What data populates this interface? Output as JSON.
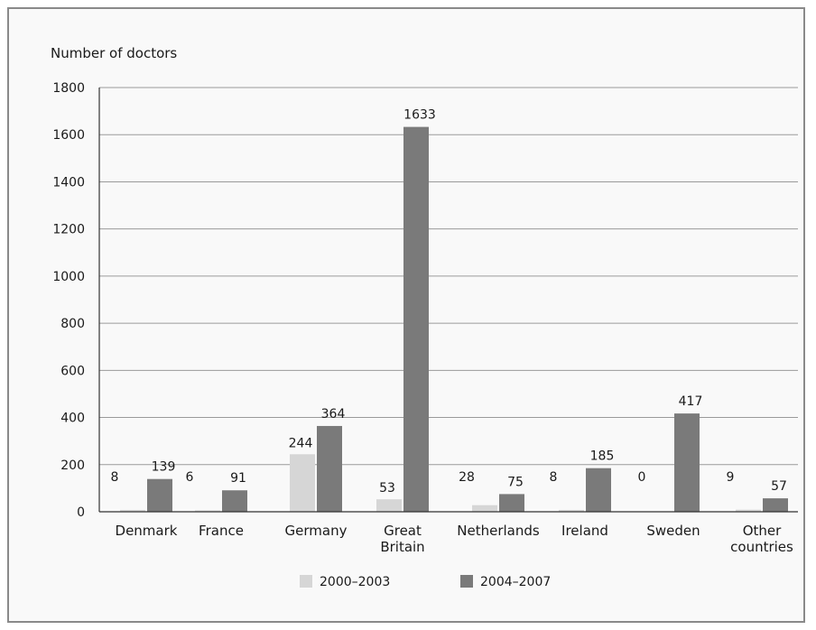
{
  "chart_data": {
    "type": "bar",
    "ylabel": "Number of doctors",
    "ylim": [
      0,
      1800
    ],
    "yticks": [
      0,
      200,
      400,
      600,
      800,
      1000,
      1200,
      1400,
      1600,
      1800
    ],
    "categories": [
      [
        "Denmark"
      ],
      [
        "France"
      ],
      [
        "Germany"
      ],
      [
        "Great",
        "Britain"
      ],
      [
        "Netherlands"
      ],
      [
        "Ireland"
      ],
      [
        "Sweden"
      ],
      [
        "Other",
        "countries"
      ]
    ],
    "series": [
      {
        "name": "2000–2003",
        "values": [
          8,
          6,
          244,
          53,
          28,
          8,
          0,
          9
        ],
        "color": "#d6d6d6"
      },
      {
        "name": "2004–2007",
        "values": [
          139,
          91,
          364,
          1633,
          75,
          185,
          417,
          57
        ],
        "color": "#7a7a7a"
      }
    ],
    "grid": true,
    "legend": "bottom"
  }
}
